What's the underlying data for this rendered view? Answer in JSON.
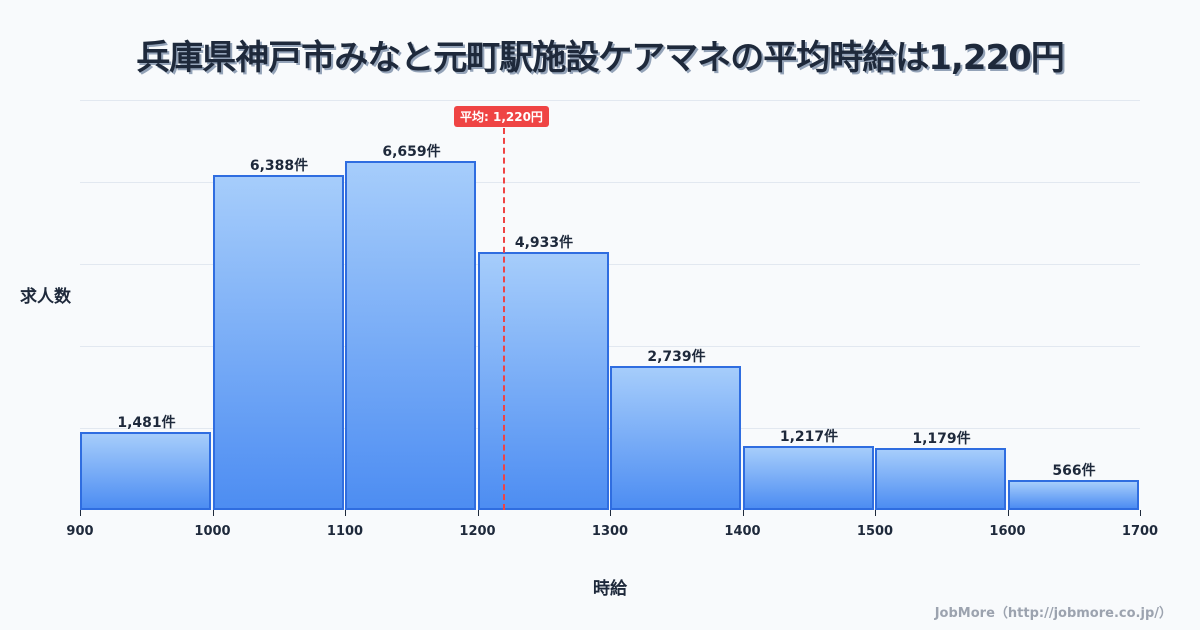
{
  "title": "兵庫県神戸市みなと元町駅施設ケアマネの平均時給は1,220円",
  "axes": {
    "ylabel": "求人数",
    "xlabel": "時給"
  },
  "average": {
    "label": "平均: 1,220円",
    "value": 1220,
    "color": "#ef4444"
  },
  "credit": "JobMore（http://jobmore.co.jp/）",
  "colors": {
    "bar_border": "#2f6de0",
    "bar_top": "#a6cdfb",
    "bar_bottom": "#4d8df2",
    "background": "#f8fafc"
  },
  "x_ticks": [
    "900",
    "1000",
    "1100",
    "1200",
    "1300",
    "1400",
    "1500",
    "1600",
    "1700"
  ],
  "bars": [
    {
      "label": "1,481件",
      "value": 1481
    },
    {
      "label": "6,388件",
      "value": 6388
    },
    {
      "label": "6,659件",
      "value": 6659
    },
    {
      "label": "4,933件",
      "value": 4933
    },
    {
      "label": "2,739件",
      "value": 2739
    },
    {
      "label": "1,217件",
      "value": 1217
    },
    {
      "label": "1,179件",
      "value": 1179
    },
    {
      "label": "566件",
      "value": 566
    }
  ],
  "chart_data": {
    "type": "bar",
    "title": "兵庫県神戸市みなと元町駅施設ケアマネの平均時給は1,220円",
    "xlabel": "時給",
    "ylabel": "求人数",
    "categories": [
      "900-1000",
      "1000-1100",
      "1100-1200",
      "1200-1300",
      "1300-1400",
      "1400-1500",
      "1500-1600",
      "1600-1700"
    ],
    "values": [
      1481,
      6388,
      6659,
      4933,
      2739,
      1217,
      1179,
      566
    ],
    "x_ticks": [
      900,
      1000,
      1100,
      1200,
      1300,
      1400,
      1500,
      1600,
      1700
    ],
    "annotations": [
      {
        "type": "vline",
        "x": 1220,
        "label": "平均: 1,220円"
      }
    ],
    "grid": true,
    "legend": null
  }
}
